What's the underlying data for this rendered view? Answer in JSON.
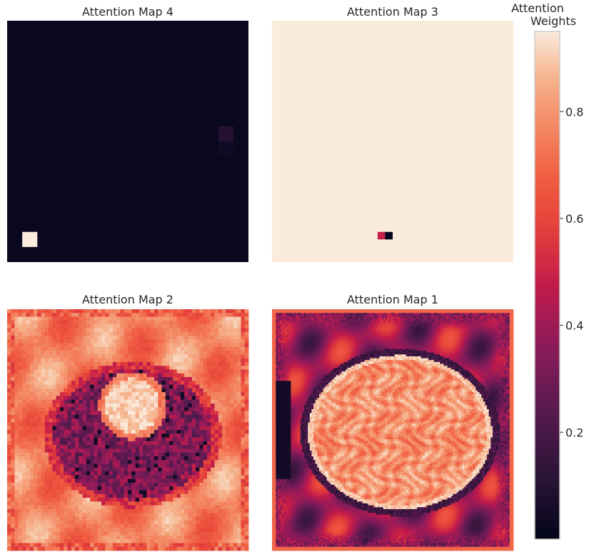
{
  "chart_data": {
    "type": "heatmap",
    "colormap": "rocket",
    "colors": {
      "low": "#03051a",
      "mid_dark": "#701f57",
      "mid": "#e13342",
      "mid_light": "#f6b48e",
      "high": "#faebdd",
      "background": "#ffffff",
      "text": "#262626"
    },
    "value_range": [
      0.0,
      0.95
    ],
    "panels": [
      {
        "title": "Attention Map 4",
        "grid": [
          16,
          16
        ],
        "fill": 0.02,
        "cells": [
          {
            "row": 7,
            "col": 14,
            "value": 0.1
          },
          {
            "row": 8,
            "col": 14,
            "value": 0.04
          },
          {
            "row": 14,
            "col": 1,
            "value": 0.95
          }
        ]
      },
      {
        "title": "Attention Map 3",
        "grid": [
          32,
          32
        ],
        "fill": 0.95,
        "cells": [
          {
            "row": 28,
            "col": 14,
            "value": 0.48
          },
          {
            "row": 28,
            "col": 15,
            "value": 0.0
          }
        ]
      },
      {
        "title": "Attention Map 2",
        "grid": [
          64,
          64
        ],
        "pattern": "ring_blob_coarse"
      },
      {
        "title": "Attention Map 1",
        "grid": [
          128,
          128
        ],
        "pattern": "brain_fine"
      }
    ],
    "colorbar": {
      "title": [
        "Attention",
        "Weights"
      ],
      "ticks": [
        "0.2",
        "0.4",
        "0.6",
        "0.8"
      ],
      "tick_values": [
        0.2,
        0.4,
        0.6,
        0.8
      ],
      "range": [
        0.0,
        0.95
      ]
    }
  }
}
